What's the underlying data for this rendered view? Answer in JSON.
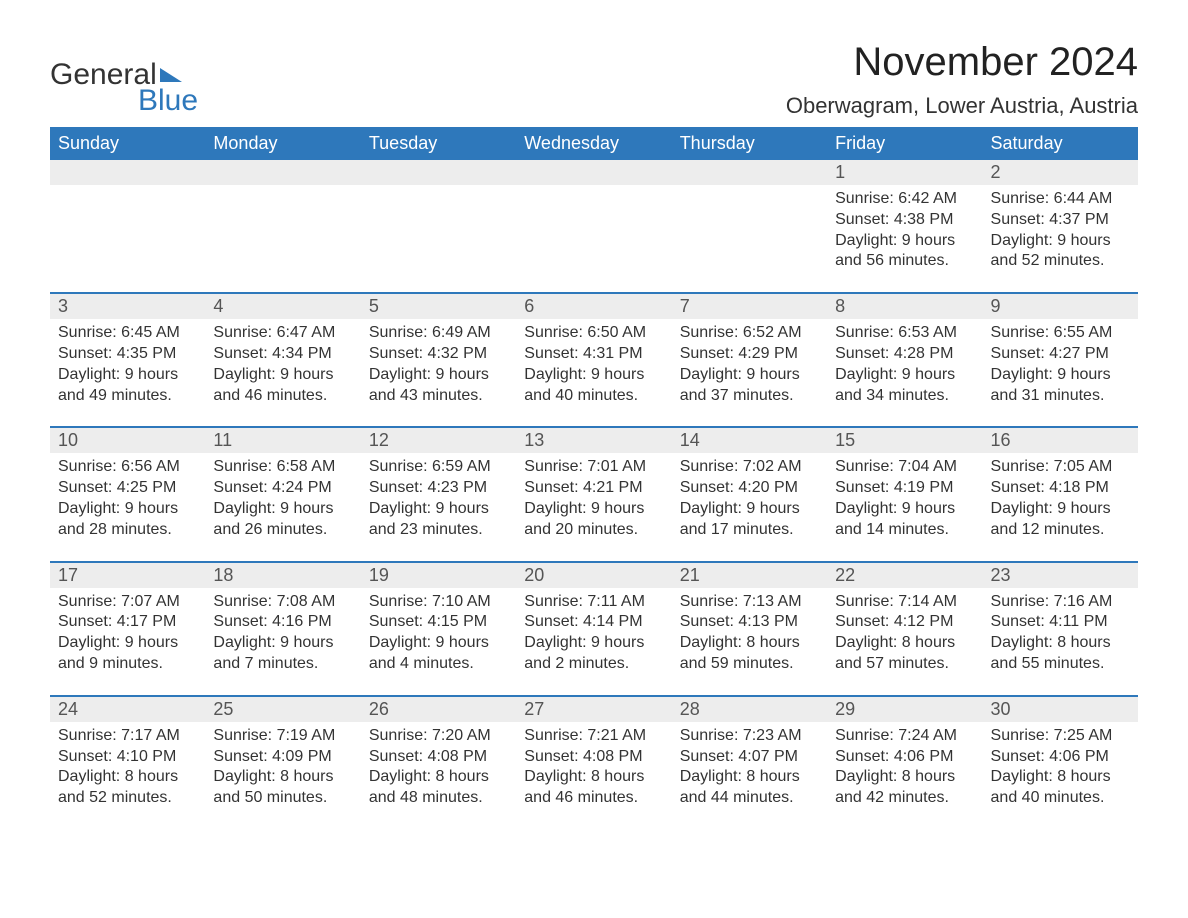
{
  "logo": {
    "word1": "General",
    "word2": "Blue"
  },
  "title": "November 2024",
  "location": "Oberwagram, Lower Austria, Austria",
  "colors": {
    "header_bg": "#2e78bb",
    "header_text": "#ffffff",
    "daynum_bg": "#ededed",
    "daynum_text": "#555555",
    "body_text": "#333333",
    "rule": "#2e78bb",
    "page_bg": "#ffffff",
    "logo_accent": "#2e78bb"
  },
  "typography": {
    "title_fontsize": 40,
    "location_fontsize": 22,
    "weekday_fontsize": 18,
    "daynum_fontsize": 18,
    "body_fontsize": 16,
    "font_family": "Arial"
  },
  "weekdays": [
    "Sunday",
    "Monday",
    "Tuesday",
    "Wednesday",
    "Thursday",
    "Friday",
    "Saturday"
  ],
  "weeks": [
    [
      {
        "n": "",
        "sunrise": "",
        "sunset": "",
        "daylight1": "",
        "daylight2": ""
      },
      {
        "n": "",
        "sunrise": "",
        "sunset": "",
        "daylight1": "",
        "daylight2": ""
      },
      {
        "n": "",
        "sunrise": "",
        "sunset": "",
        "daylight1": "",
        "daylight2": ""
      },
      {
        "n": "",
        "sunrise": "",
        "sunset": "",
        "daylight1": "",
        "daylight2": ""
      },
      {
        "n": "",
        "sunrise": "",
        "sunset": "",
        "daylight1": "",
        "daylight2": ""
      },
      {
        "n": "1",
        "sunrise": "Sunrise: 6:42 AM",
        "sunset": "Sunset: 4:38 PM",
        "daylight1": "Daylight: 9 hours",
        "daylight2": "and 56 minutes."
      },
      {
        "n": "2",
        "sunrise": "Sunrise: 6:44 AM",
        "sunset": "Sunset: 4:37 PM",
        "daylight1": "Daylight: 9 hours",
        "daylight2": "and 52 minutes."
      }
    ],
    [
      {
        "n": "3",
        "sunrise": "Sunrise: 6:45 AM",
        "sunset": "Sunset: 4:35 PM",
        "daylight1": "Daylight: 9 hours",
        "daylight2": "and 49 minutes."
      },
      {
        "n": "4",
        "sunrise": "Sunrise: 6:47 AM",
        "sunset": "Sunset: 4:34 PM",
        "daylight1": "Daylight: 9 hours",
        "daylight2": "and 46 minutes."
      },
      {
        "n": "5",
        "sunrise": "Sunrise: 6:49 AM",
        "sunset": "Sunset: 4:32 PM",
        "daylight1": "Daylight: 9 hours",
        "daylight2": "and 43 minutes."
      },
      {
        "n": "6",
        "sunrise": "Sunrise: 6:50 AM",
        "sunset": "Sunset: 4:31 PM",
        "daylight1": "Daylight: 9 hours",
        "daylight2": "and 40 minutes."
      },
      {
        "n": "7",
        "sunrise": "Sunrise: 6:52 AM",
        "sunset": "Sunset: 4:29 PM",
        "daylight1": "Daylight: 9 hours",
        "daylight2": "and 37 minutes."
      },
      {
        "n": "8",
        "sunrise": "Sunrise: 6:53 AM",
        "sunset": "Sunset: 4:28 PM",
        "daylight1": "Daylight: 9 hours",
        "daylight2": "and 34 minutes."
      },
      {
        "n": "9",
        "sunrise": "Sunrise: 6:55 AM",
        "sunset": "Sunset: 4:27 PM",
        "daylight1": "Daylight: 9 hours",
        "daylight2": "and 31 minutes."
      }
    ],
    [
      {
        "n": "10",
        "sunrise": "Sunrise: 6:56 AM",
        "sunset": "Sunset: 4:25 PM",
        "daylight1": "Daylight: 9 hours",
        "daylight2": "and 28 minutes."
      },
      {
        "n": "11",
        "sunrise": "Sunrise: 6:58 AM",
        "sunset": "Sunset: 4:24 PM",
        "daylight1": "Daylight: 9 hours",
        "daylight2": "and 26 minutes."
      },
      {
        "n": "12",
        "sunrise": "Sunrise: 6:59 AM",
        "sunset": "Sunset: 4:23 PM",
        "daylight1": "Daylight: 9 hours",
        "daylight2": "and 23 minutes."
      },
      {
        "n": "13",
        "sunrise": "Sunrise: 7:01 AM",
        "sunset": "Sunset: 4:21 PM",
        "daylight1": "Daylight: 9 hours",
        "daylight2": "and 20 minutes."
      },
      {
        "n": "14",
        "sunrise": "Sunrise: 7:02 AM",
        "sunset": "Sunset: 4:20 PM",
        "daylight1": "Daylight: 9 hours",
        "daylight2": "and 17 minutes."
      },
      {
        "n": "15",
        "sunrise": "Sunrise: 7:04 AM",
        "sunset": "Sunset: 4:19 PM",
        "daylight1": "Daylight: 9 hours",
        "daylight2": "and 14 minutes."
      },
      {
        "n": "16",
        "sunrise": "Sunrise: 7:05 AM",
        "sunset": "Sunset: 4:18 PM",
        "daylight1": "Daylight: 9 hours",
        "daylight2": "and 12 minutes."
      }
    ],
    [
      {
        "n": "17",
        "sunrise": "Sunrise: 7:07 AM",
        "sunset": "Sunset: 4:17 PM",
        "daylight1": "Daylight: 9 hours",
        "daylight2": "and 9 minutes."
      },
      {
        "n": "18",
        "sunrise": "Sunrise: 7:08 AM",
        "sunset": "Sunset: 4:16 PM",
        "daylight1": "Daylight: 9 hours",
        "daylight2": "and 7 minutes."
      },
      {
        "n": "19",
        "sunrise": "Sunrise: 7:10 AM",
        "sunset": "Sunset: 4:15 PM",
        "daylight1": "Daylight: 9 hours",
        "daylight2": "and 4 minutes."
      },
      {
        "n": "20",
        "sunrise": "Sunrise: 7:11 AM",
        "sunset": "Sunset: 4:14 PM",
        "daylight1": "Daylight: 9 hours",
        "daylight2": "and 2 minutes."
      },
      {
        "n": "21",
        "sunrise": "Sunrise: 7:13 AM",
        "sunset": "Sunset: 4:13 PM",
        "daylight1": "Daylight: 8 hours",
        "daylight2": "and 59 minutes."
      },
      {
        "n": "22",
        "sunrise": "Sunrise: 7:14 AM",
        "sunset": "Sunset: 4:12 PM",
        "daylight1": "Daylight: 8 hours",
        "daylight2": "and 57 minutes."
      },
      {
        "n": "23",
        "sunrise": "Sunrise: 7:16 AM",
        "sunset": "Sunset: 4:11 PM",
        "daylight1": "Daylight: 8 hours",
        "daylight2": "and 55 minutes."
      }
    ],
    [
      {
        "n": "24",
        "sunrise": "Sunrise: 7:17 AM",
        "sunset": "Sunset: 4:10 PM",
        "daylight1": "Daylight: 8 hours",
        "daylight2": "and 52 minutes."
      },
      {
        "n": "25",
        "sunrise": "Sunrise: 7:19 AM",
        "sunset": "Sunset: 4:09 PM",
        "daylight1": "Daylight: 8 hours",
        "daylight2": "and 50 minutes."
      },
      {
        "n": "26",
        "sunrise": "Sunrise: 7:20 AM",
        "sunset": "Sunset: 4:08 PM",
        "daylight1": "Daylight: 8 hours",
        "daylight2": "and 48 minutes."
      },
      {
        "n": "27",
        "sunrise": "Sunrise: 7:21 AM",
        "sunset": "Sunset: 4:08 PM",
        "daylight1": "Daylight: 8 hours",
        "daylight2": "and 46 minutes."
      },
      {
        "n": "28",
        "sunrise": "Sunrise: 7:23 AM",
        "sunset": "Sunset: 4:07 PM",
        "daylight1": "Daylight: 8 hours",
        "daylight2": "and 44 minutes."
      },
      {
        "n": "29",
        "sunrise": "Sunrise: 7:24 AM",
        "sunset": "Sunset: 4:06 PM",
        "daylight1": "Daylight: 8 hours",
        "daylight2": "and 42 minutes."
      },
      {
        "n": "30",
        "sunrise": "Sunrise: 7:25 AM",
        "sunset": "Sunset: 4:06 PM",
        "daylight1": "Daylight: 8 hours",
        "daylight2": "and 40 minutes."
      }
    ]
  ]
}
